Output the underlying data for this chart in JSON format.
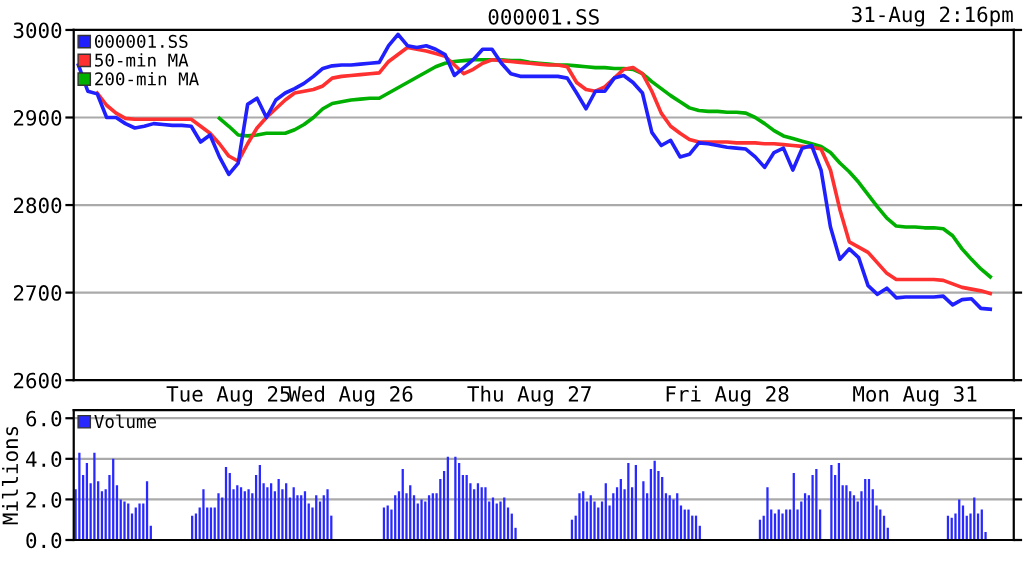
{
  "chart_data": [
    {
      "type": "line",
      "title": "000001.SS",
      "annotations": [
        "31-Aug 2:16pm"
      ],
      "categories": [
        null,
        null,
        null,
        null,
        null,
        null,
        null,
        null,
        null,
        null,
        null,
        null,
        null,
        null,
        null,
        null,
        "Tue Aug 25",
        null,
        null,
        null,
        null,
        null,
        null,
        null,
        null,
        null,
        null,
        null,
        null,
        "Wed Aug 26",
        null,
        null,
        null,
        null,
        null,
        null,
        null,
        null,
        null,
        null,
        null,
        null,
        null,
        null,
        null,
        null,
        null,
        null,
        "Thu Aug 27",
        null,
        null,
        null,
        null,
        null,
        null,
        null,
        null,
        null,
        null,
        null,
        null,
        null,
        null,
        null,
        null,
        null,
        null,
        null,
        null,
        "Fri Aug 28",
        null,
        null,
        null,
        null,
        null,
        null,
        null,
        null,
        null,
        null,
        null,
        null,
        null,
        null,
        null,
        null,
        null,
        null,
        null,
        "Mon Aug 31",
        null,
        null,
        null,
        null,
        null,
        null,
        null,
        null,
        null,
        null
      ],
      "ylim": [
        2600,
        3000
      ],
      "yticks": [
        2600,
        2700,
        2800,
        2900,
        3000
      ],
      "grid": "y",
      "legend": "top left",
      "marker": "none",
      "line_style": "solid",
      "series": [
        {
          "name": "200-min MA",
          "color": "#00b000",
          "values": [
            null,
            null,
            null,
            null,
            null,
            null,
            null,
            null,
            null,
            null,
            null,
            null,
            null,
            null,
            null,
            2899,
            2890,
            2880,
            2879,
            2880,
            2882,
            2882,
            2882,
            2886,
            2892,
            2900,
            2910,
            2916,
            2918,
            2920,
            2921,
            2922,
            2922,
            2928,
            2934,
            2940,
            2946,
            2952,
            2958,
            2962,
            2964,
            2965,
            2966,
            2966,
            2966,
            2966,
            2965,
            2965,
            2963,
            2962,
            2961,
            2960,
            2960,
            2959,
            2958,
            2957,
            2957,
            2956,
            2956,
            2955,
            2950,
            2941,
            2933,
            2925,
            2918,
            2911,
            2908,
            2907,
            2907,
            2906,
            2906,
            2905,
            2900,
            2893,
            2885,
            2879,
            2876,
            2873,
            2870,
            2867,
            2860,
            2848,
            2838,
            2826,
            2812,
            2798,
            2785,
            2776,
            2775,
            2775,
            2774,
            2774,
            2773,
            2765,
            2750,
            2738,
            2727,
            2718,
            null,
            null
          ]
        },
        {
          "name": "50-min MA",
          "color": "#ff3030",
          "values": [
            null,
            null,
            2928,
            2914,
            2905,
            2899,
            2898,
            2898,
            2898,
            2898,
            2898,
            2898,
            2898,
            2890,
            2882,
            2870,
            2856,
            2850,
            2870,
            2888,
            2900,
            2910,
            2920,
            2928,
            2930,
            2932,
            2936,
            2945,
            2947,
            2948,
            2949,
            2950,
            2951,
            2964,
            2972,
            2980,
            2978,
            2976,
            2973,
            2970,
            2960,
            2950,
            2955,
            2962,
            2966,
            2965,
            2964,
            2963,
            2962,
            2961,
            2960,
            2960,
            2958,
            2940,
            2932,
            2930,
            2935,
            2945,
            2955,
            2957,
            2950,
            2930,
            2905,
            2890,
            2882,
            2875,
            2872,
            2872,
            2872,
            2872,
            2871,
            2871,
            2871,
            2870,
            2870,
            2869,
            2868,
            2867,
            2866,
            2864,
            2840,
            2795,
            2758,
            2752,
            2746,
            2734,
            2722,
            2715,
            2715,
            2715,
            2715,
            2715,
            2714,
            2710,
            2706,
            2704,
            2702,
            2699,
            null,
            null
          ]
        },
        {
          "name": "000001.SS",
          "color": "#2020ff",
          "values": [
            2960,
            2930,
            2927,
            2900,
            2900,
            2893,
            2888,
            2890,
            2893,
            2892,
            2891,
            2891,
            2890,
            2872,
            2880,
            2855,
            2835,
            2848,
            2915,
            2922,
            2900,
            2920,
            2928,
            2933,
            2939,
            2947,
            2956,
            2959,
            2960,
            2960,
            2961,
            2962,
            2963,
            2982,
            2995,
            2982,
            2980,
            2982,
            2978,
            2972,
            2948,
            2957,
            2966,
            2978,
            2978,
            2962,
            2950,
            2947,
            2947,
            2947,
            2947,
            2947,
            2945,
            2928,
            2910,
            2930,
            2930,
            2945,
            2948,
            2940,
            2928,
            2883,
            2868,
            2874,
            2855,
            2858,
            2871,
            2870,
            2868,
            2866,
            2865,
            2864,
            2855,
            2843,
            2860,
            2865,
            2840,
            2865,
            2868,
            2840,
            2775,
            2738,
            2750,
            2740,
            2708,
            2698,
            2705,
            2694,
            2695,
            2695,
            2695,
            2695,
            2696,
            2686,
            2692,
            2693,
            2682,
            2681,
            null,
            null
          ]
        }
      ]
    },
    {
      "type": "bar",
      "ylabel": "Millions",
      "ylim": [
        0,
        6.4
      ],
      "yticks": [
        {
          "value": 0,
          "label": "0.0"
        },
        {
          "value": 2,
          "label": "2.0"
        },
        {
          "value": 4,
          "label": "4.0"
        },
        {
          "value": 6,
          "label": "6.0"
        }
      ],
      "tick_labels": "y",
      "grid": "y",
      "legend": "top left",
      "categories": [
        null,
        null,
        null,
        null,
        null,
        null,
        null,
        null,
        null,
        null,
        null,
        null,
        null,
        null,
        null,
        null,
        null,
        null,
        null,
        null,
        null,
        null,
        null,
        null,
        null,
        null,
        null,
        null,
        null,
        null,
        null,
        null,
        null,
        null,
        null,
        null,
        null,
        null,
        null,
        null,
        null,
        null,
        null,
        null,
        null,
        null,
        null,
        null,
        null,
        null,
        null,
        null,
        null,
        null,
        null,
        null,
        null,
        null,
        null,
        null,
        null,
        null,
        null,
        null,
        null,
        null,
        null,
        null,
        null,
        null,
        null,
        null,
        null,
        null,
        null,
        null,
        null,
        null,
        null,
        null,
        null,
        null,
        null,
        null,
        null,
        null,
        null,
        null,
        null,
        null,
        null,
        null,
        null,
        null,
        null,
        null,
        null,
        null,
        null,
        null,
        null,
        null,
        null,
        null,
        null,
        null,
        null,
        null,
        null,
        null,
        null,
        null,
        null,
        null,
        null,
        null,
        null,
        null,
        null,
        null,
        null,
        null,
        null,
        null,
        null,
        null,
        null,
        null,
        null,
        null,
        null,
        null,
        null,
        null,
        null,
        null,
        null,
        null,
        null,
        null,
        null,
        null,
        null,
        null,
        null,
        null,
        null,
        null,
        null,
        null,
        null,
        null,
        null,
        null,
        null,
        null,
        null,
        null,
        null,
        null,
        null,
        null,
        null,
        null,
        null,
        null,
        null,
        null,
        null,
        null,
        null,
        null,
        null,
        null,
        null,
        null,
        null,
        null,
        null,
        null,
        null,
        null,
        null,
        null,
        null,
        null,
        null,
        null,
        null,
        null,
        null,
        null,
        null,
        null,
        null,
        null,
        null,
        null,
        null,
        null,
        null,
        null,
        null,
        null,
        null,
        null,
        null,
        null,
        null,
        null,
        null,
        null,
        null,
        null,
        null,
        null,
        null,
        null,
        null,
        null,
        null,
        null,
        null,
        null,
        null,
        null,
        null,
        null,
        null,
        null,
        null,
        null,
        null,
        null,
        null,
        null,
        null,
        null,
        null,
        null,
        null,
        null,
        null,
        null,
        null,
        null,
        null,
        null,
        null,
        null
      ],
      "series": [
        {
          "name": "Volume",
          "color": "#2828ff",
          "values": [
            2.5,
            4.3,
            3.2,
            3.8,
            2.8,
            4.3,
            2.9,
            2.4,
            2.5,
            3.2,
            4.0,
            2.7,
            2.0,
            1.9,
            1.8,
            1.3,
            1.6,
            1.8,
            1.8,
            2.9,
            0.7,
            null,
            null,
            null,
            null,
            null,
            null,
            null,
            null,
            null,
            null,
            1.2,
            1.3,
            1.6,
            2.5,
            1.6,
            1.6,
            1.6,
            2.3,
            2.1,
            3.6,
            3.3,
            2.5,
            2.7,
            2.6,
            2.4,
            2.5,
            2.3,
            3.2,
            3.7,
            2.8,
            2.6,
            2.8,
            2.4,
            3.0,
            2.5,
            2.8,
            2.1,
            2.6,
            2.2,
            2.2,
            2.4,
            1.8,
            1.6,
            2.2,
            1.9,
            2.2,
            2.5,
            1.2,
            null,
            null,
            null,
            null,
            null,
            null,
            null,
            null,
            null,
            null,
            null,
            null,
            null,
            1.6,
            1.7,
            1.5,
            2.2,
            2.4,
            3.5,
            2.3,
            2.7,
            2.2,
            1.8,
            2.0,
            1.9,
            2.2,
            2.3,
            2.3,
            3.0,
            3.4,
            4.1,
            null,
            4.1,
            3.8,
            3.2,
            3.2,
            2.8,
            2.5,
            2.8,
            2.6,
            2.6,
            1.9,
            2.1,
            1.8,
            1.9,
            2.1,
            1.6,
            1.3,
            0.6,
            null,
            null,
            null,
            null,
            null,
            null,
            null,
            null,
            null,
            null,
            null,
            null,
            null,
            null,
            1.0,
            1.2,
            2.3,
            2.4,
            1.9,
            2.2,
            1.9,
            1.6,
            1.9,
            2.8,
            1.7,
            2.3,
            2.6,
            3.0,
            2.5,
            3.8,
            2.6,
            3.7,
            null,
            2.9,
            2.3,
            3.5,
            3.9,
            3.4,
            3.1,
            2.3,
            2.2,
            2.0,
            2.3,
            1.7,
            1.5,
            1.5,
            1.2,
            1.2,
            0.7,
            null,
            null,
            null,
            null,
            null,
            null,
            null,
            null,
            null,
            null,
            null,
            null,
            null,
            null,
            null,
            1.0,
            1.2,
            2.6,
            1.5,
            1.3,
            1.5,
            1.3,
            1.5,
            1.5,
            3.3,
            1.5,
            1.9,
            2.3,
            2.2,
            3.2,
            3.5,
            1.5,
            null,
            null,
            3.7,
            3.2,
            3.8,
            2.7,
            2.7,
            2.4,
            2.2,
            1.9,
            2.4,
            3.0,
            3.0,
            2.5,
            1.7,
            1.5,
            1.2,
            0.6,
            null,
            null,
            null,
            null,
            null,
            null,
            null,
            null,
            null,
            null,
            null,
            null,
            null,
            null,
            null,
            1.2,
            1.1,
            1.3,
            2.0,
            1.7,
            1.2,
            1.3,
            2.1,
            1.3,
            1.5,
            0.4,
            null,
            null,
            null,
            null,
            null,
            null,
            null
          ]
        }
      ]
    }
  ]
}
